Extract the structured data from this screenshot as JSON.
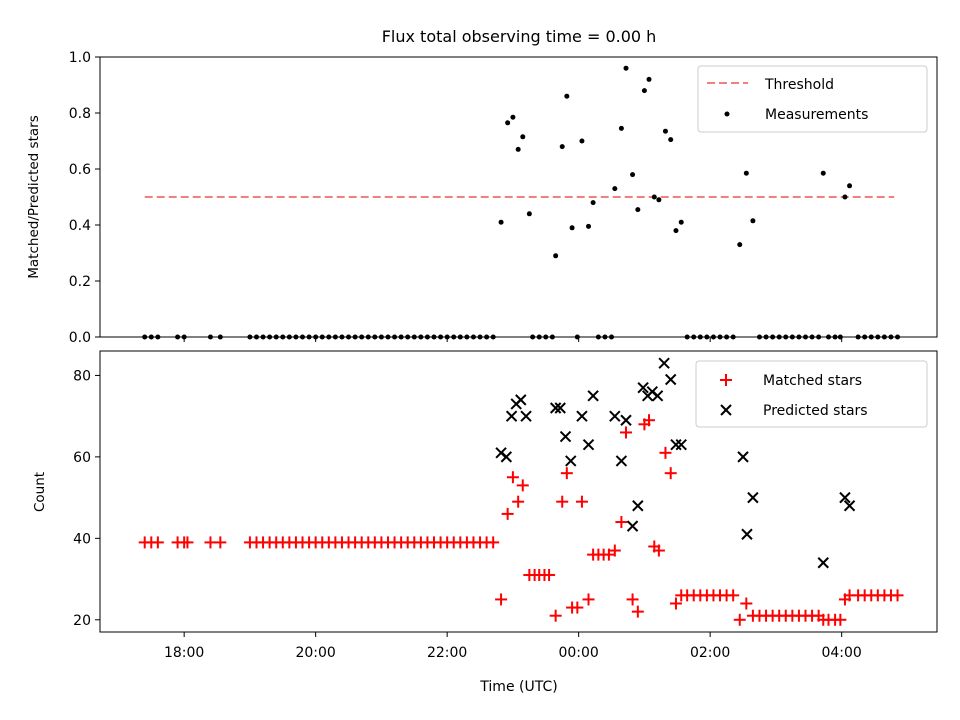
{
  "title": "Flux total observing time = 0.00 h",
  "xlabel": "Time (UTC)",
  "x_ticks": [
    "18:00",
    "20:00",
    "22:00",
    "00:00",
    "02:00",
    "04:00"
  ],
  "colors": {
    "threshold": "#f08080",
    "measurement": "#000000",
    "matched": "#ff0000",
    "predicted": "#000000"
  },
  "chart_data": [
    {
      "type": "scatter",
      "ylabel": "Matched/Predicted stars",
      "ylim": [
        0.0,
        1.0
      ],
      "y_ticks": [
        "0.0",
        "0.2",
        "0.4",
        "0.6",
        "0.8",
        "1.0"
      ],
      "threshold": {
        "name": "Threshold",
        "y": 0.5,
        "x_range": [
          -6.6,
          4.8
        ]
      },
      "legend": {
        "location": "top-right",
        "entries": [
          "Threshold",
          "Measurements"
        ]
      },
      "measurements": {
        "name": "Measurements",
        "points": [
          [
            -6.6,
            0
          ],
          [
            -6.5,
            0
          ],
          [
            -6.4,
            0
          ],
          [
            -6.1,
            0
          ],
          [
            -6.0,
            0
          ],
          [
            -5.6,
            0
          ],
          [
            -5.45,
            0
          ],
          [
            -5.0,
            0
          ],
          [
            -4.9,
            0
          ],
          [
            -4.8,
            0
          ],
          [
            -4.7,
            0
          ],
          [
            -4.6,
            0
          ],
          [
            -4.5,
            0
          ],
          [
            -4.4,
            0
          ],
          [
            -4.3,
            0
          ],
          [
            -4.2,
            0
          ],
          [
            -4.1,
            0
          ],
          [
            -4.0,
            0
          ],
          [
            -3.9,
            0
          ],
          [
            -3.8,
            0
          ],
          [
            -3.7,
            0
          ],
          [
            -3.6,
            0
          ],
          [
            -3.5,
            0
          ],
          [
            -3.4,
            0
          ],
          [
            -3.3,
            0
          ],
          [
            -3.2,
            0
          ],
          [
            -3.1,
            0
          ],
          [
            -3.0,
            0
          ],
          [
            -2.9,
            0
          ],
          [
            -2.8,
            0
          ],
          [
            -2.7,
            0
          ],
          [
            -2.6,
            0
          ],
          [
            -2.5,
            0
          ],
          [
            -2.4,
            0
          ],
          [
            -2.3,
            0
          ],
          [
            -2.2,
            0
          ],
          [
            -2.1,
            0
          ],
          [
            -2.0,
            0
          ],
          [
            -1.9,
            0
          ],
          [
            -1.8,
            0
          ],
          [
            -1.7,
            0
          ],
          [
            -1.6,
            0
          ],
          [
            -1.5,
            0
          ],
          [
            -1.4,
            0
          ],
          [
            -1.3,
            0
          ],
          [
            -1.18,
            0.41
          ],
          [
            -1.08,
            0.765
          ],
          [
            -1.0,
            0.785
          ],
          [
            -0.92,
            0.67
          ],
          [
            -0.85,
            0.715
          ],
          [
            -0.75,
            0.44
          ],
          [
            -0.7,
            0
          ],
          [
            -0.6,
            0
          ],
          [
            -0.5,
            0
          ],
          [
            -0.4,
            0
          ],
          [
            -0.35,
            0.29
          ],
          [
            -0.25,
            0.68
          ],
          [
            -0.18,
            0.86
          ],
          [
            -0.1,
            0.39
          ],
          [
            -0.02,
            0
          ],
          [
            0.05,
            0.7
          ],
          [
            0.15,
            0.395
          ],
          [
            0.22,
            0.48
          ],
          [
            0.3,
            0
          ],
          [
            0.4,
            0
          ],
          [
            0.5,
            0
          ],
          [
            0.55,
            0.53
          ],
          [
            0.65,
            0.745
          ],
          [
            0.72,
            0.96
          ],
          [
            0.82,
            0.58
          ],
          [
            0.9,
            0.455
          ],
          [
            1.0,
            0.88
          ],
          [
            1.07,
            0.92
          ],
          [
            1.15,
            0.5
          ],
          [
            1.22,
            0.49
          ],
          [
            1.32,
            0.735
          ],
          [
            1.4,
            0.705
          ],
          [
            1.48,
            0.38
          ],
          [
            1.56,
            0.41
          ],
          [
            1.65,
            0
          ],
          [
            1.75,
            0
          ],
          [
            1.85,
            0
          ],
          [
            1.95,
            0
          ],
          [
            2.05,
            0
          ],
          [
            2.15,
            0
          ],
          [
            2.25,
            0
          ],
          [
            2.35,
            0
          ],
          [
            2.45,
            0.33
          ],
          [
            2.55,
            0.585
          ],
          [
            2.65,
            0.415
          ],
          [
            2.75,
            0
          ],
          [
            2.85,
            0
          ],
          [
            2.95,
            0
          ],
          [
            3.05,
            0
          ],
          [
            3.15,
            0
          ],
          [
            3.25,
            0
          ],
          [
            3.35,
            0
          ],
          [
            3.45,
            0
          ],
          [
            3.55,
            0
          ],
          [
            3.65,
            0
          ],
          [
            3.72,
            0.585
          ],
          [
            3.8,
            0
          ],
          [
            3.9,
            0
          ],
          [
            3.98,
            0
          ],
          [
            4.05,
            0.5
          ],
          [
            4.12,
            0.54
          ],
          [
            4.25,
            0
          ],
          [
            4.35,
            0
          ],
          [
            4.45,
            0
          ],
          [
            4.55,
            0
          ],
          [
            4.65,
            0
          ],
          [
            4.75,
            0
          ],
          [
            4.85,
            0
          ]
        ]
      }
    },
    {
      "type": "scatter",
      "ylabel": "Count",
      "ylim": [
        17,
        86
      ],
      "y_ticks": [
        "20",
        "40",
        "60",
        "80"
      ],
      "legend": {
        "location": "top-right",
        "entries": [
          "Matched stars",
          "Predicted stars"
        ]
      },
      "series": [
        {
          "name": "Matched stars",
          "marker": "plus",
          "points": [
            [
              -6.6,
              39
            ],
            [
              -6.5,
              39
            ],
            [
              -6.4,
              39
            ],
            [
              -6.1,
              39
            ],
            [
              -6.0,
              39
            ],
            [
              -5.95,
              39
            ],
            [
              -5.6,
              39
            ],
            [
              -5.45,
              39
            ],
            [
              -5.0,
              39
            ],
            [
              -4.9,
              39
            ],
            [
              -4.8,
              39
            ],
            [
              -4.7,
              39
            ],
            [
              -4.6,
              39
            ],
            [
              -4.5,
              39
            ],
            [
              -4.4,
              39
            ],
            [
              -4.3,
              39
            ],
            [
              -4.2,
              39
            ],
            [
              -4.1,
              39
            ],
            [
              -4.0,
              39
            ],
            [
              -3.9,
              39
            ],
            [
              -3.8,
              39
            ],
            [
              -3.7,
              39
            ],
            [
              -3.6,
              39
            ],
            [
              -3.5,
              39
            ],
            [
              -3.4,
              39
            ],
            [
              -3.3,
              39
            ],
            [
              -3.2,
              39
            ],
            [
              -3.1,
              39
            ],
            [
              -3.0,
              39
            ],
            [
              -2.9,
              39
            ],
            [
              -2.8,
              39
            ],
            [
              -2.7,
              39
            ],
            [
              -2.6,
              39
            ],
            [
              -2.5,
              39
            ],
            [
              -2.4,
              39
            ],
            [
              -2.3,
              39
            ],
            [
              -2.2,
              39
            ],
            [
              -2.1,
              39
            ],
            [
              -2.0,
              39
            ],
            [
              -1.9,
              39
            ],
            [
              -1.8,
              39
            ],
            [
              -1.7,
              39
            ],
            [
              -1.6,
              39
            ],
            [
              -1.5,
              39
            ],
            [
              -1.4,
              39
            ],
            [
              -1.3,
              39
            ],
            [
              -1.18,
              25
            ],
            [
              -1.08,
              46
            ],
            [
              -1.0,
              55
            ],
            [
              -0.92,
              49
            ],
            [
              -0.85,
              53
            ],
            [
              -0.75,
              31
            ],
            [
              -0.67,
              31
            ],
            [
              -0.6,
              31
            ],
            [
              -0.52,
              31
            ],
            [
              -0.45,
              31
            ],
            [
              -0.35,
              21
            ],
            [
              -0.25,
              49
            ],
            [
              -0.18,
              56
            ],
            [
              -0.1,
              23
            ],
            [
              -0.02,
              23
            ],
            [
              0.05,
              49
            ],
            [
              0.15,
              25
            ],
            [
              0.22,
              36
            ],
            [
              0.3,
              36
            ],
            [
              0.38,
              36
            ],
            [
              0.46,
              36
            ],
            [
              0.55,
              37
            ],
            [
              0.65,
              44
            ],
            [
              0.72,
              66
            ],
            [
              0.82,
              25
            ],
            [
              0.9,
              22
            ],
            [
              1.0,
              68
            ],
            [
              1.07,
              69
            ],
            [
              1.15,
              38
            ],
            [
              1.22,
              37
            ],
            [
              1.32,
              61
            ],
            [
              1.4,
              56
            ],
            [
              1.48,
              24
            ],
            [
              1.56,
              26
            ],
            [
              1.65,
              26
            ],
            [
              1.75,
              26
            ],
            [
              1.85,
              26
            ],
            [
              1.95,
              26
            ],
            [
              2.05,
              26
            ],
            [
              2.15,
              26
            ],
            [
              2.25,
              26
            ],
            [
              2.35,
              26
            ],
            [
              2.45,
              20
            ],
            [
              2.55,
              24
            ],
            [
              2.65,
              21
            ],
            [
              2.75,
              21
            ],
            [
              2.85,
              21
            ],
            [
              2.95,
              21
            ],
            [
              3.05,
              21
            ],
            [
              3.15,
              21
            ],
            [
              3.25,
              21
            ],
            [
              3.35,
              21
            ],
            [
              3.45,
              21
            ],
            [
              3.55,
              21
            ],
            [
              3.65,
              21
            ],
            [
              3.72,
              20
            ],
            [
              3.8,
              20
            ],
            [
              3.9,
              20
            ],
            [
              3.98,
              20
            ],
            [
              4.05,
              25
            ],
            [
              4.12,
              26
            ],
            [
              4.25,
              26
            ],
            [
              4.35,
              26
            ],
            [
              4.45,
              26
            ],
            [
              4.55,
              26
            ],
            [
              4.65,
              26
            ],
            [
              4.75,
              26
            ],
            [
              4.85,
              26
            ]
          ]
        },
        {
          "name": "Predicted stars",
          "marker": "x",
          "points": [
            [
              -1.18,
              61
            ],
            [
              -1.1,
              60
            ],
            [
              -1.02,
              70
            ],
            [
              -0.95,
              73
            ],
            [
              -0.88,
              74
            ],
            [
              -0.8,
              70
            ],
            [
              -0.35,
              72
            ],
            [
              -0.28,
              72
            ],
            [
              -0.2,
              65
            ],
            [
              -0.12,
              59
            ],
            [
              0.05,
              70
            ],
            [
              0.15,
              63
            ],
            [
              0.22,
              75
            ],
            [
              0.55,
              70
            ],
            [
              0.65,
              59
            ],
            [
              0.72,
              69
            ],
            [
              0.82,
              43
            ],
            [
              0.9,
              48
            ],
            [
              0.98,
              77
            ],
            [
              1.05,
              75
            ],
            [
              1.12,
              76
            ],
            [
              1.2,
              75
            ],
            [
              1.3,
              83
            ],
            [
              1.4,
              79
            ],
            [
              1.48,
              63
            ],
            [
              1.56,
              63
            ],
            [
              2.5,
              60
            ],
            [
              2.56,
              41
            ],
            [
              2.65,
              50
            ],
            [
              3.72,
              34
            ],
            [
              4.05,
              50
            ],
            [
              4.12,
              48
            ]
          ]
        }
      ]
    }
  ]
}
